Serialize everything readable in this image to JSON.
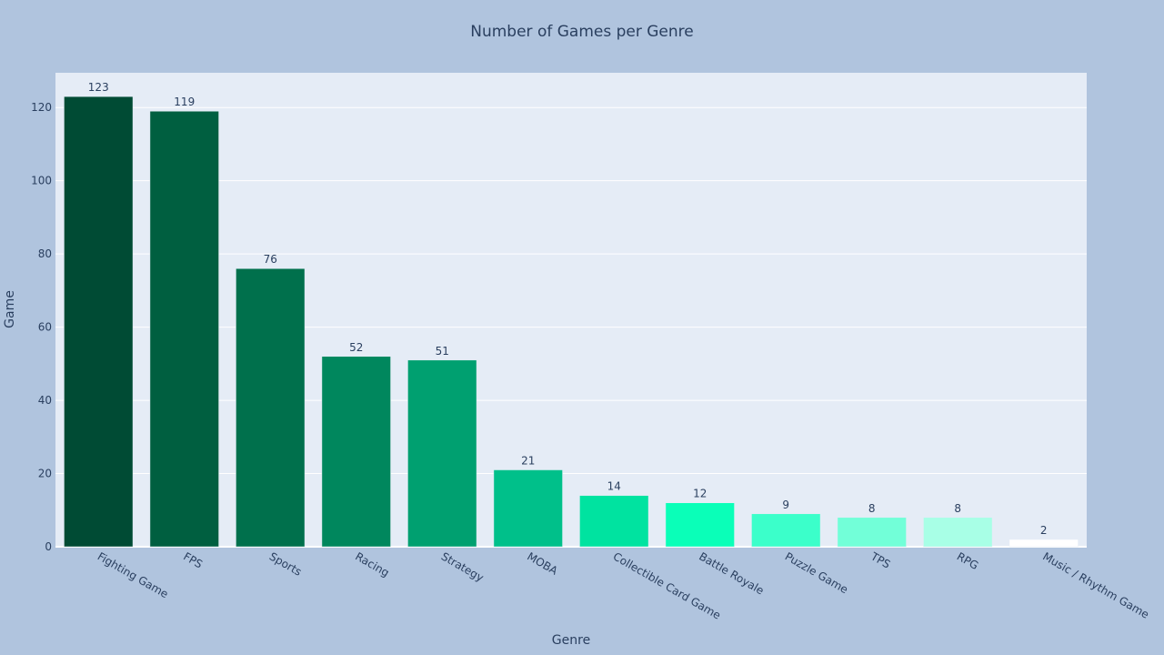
{
  "chart_data": {
    "type": "bar",
    "title": "Number of Games per Genre",
    "xlabel": "Genre",
    "ylabel": "Game",
    "categories": [
      "Fighting Game",
      "FPS",
      "Sports",
      "Racing",
      "Strategy",
      "MOBA",
      "Collectible Card Game",
      "Battle Royale",
      "Puzzle Game",
      "TPS",
      "RPG",
      "Music / Rhythm Game"
    ],
    "values": [
      123,
      119,
      76,
      52,
      51,
      21,
      14,
      12,
      9,
      8,
      8,
      2
    ],
    "data_labels": [
      "123",
      "119",
      "76",
      "52",
      "51",
      "21",
      "14",
      "12",
      "9",
      "8",
      "8",
      "2"
    ],
    "colors": [
      "#004b34",
      "#005f40",
      "#00704c",
      "#00875d",
      "#00a070",
      "#00c08a",
      "#00e3a0",
      "#0affb8",
      "#3bffca",
      "#72ffd8",
      "#a8ffe6",
      "#ffffff"
    ],
    "ylim": [
      0,
      129.5
    ],
    "yticks": [
      0,
      20,
      40,
      60,
      80,
      100,
      120
    ],
    "ytick_labels": [
      "0",
      "20",
      "40",
      "60",
      "80",
      "100",
      "120"
    ],
    "grid": true,
    "legend": "none",
    "plot_background": "#e5ecf6",
    "paper_background": "#b0c4de",
    "text_color": "#2a3f5f"
  }
}
